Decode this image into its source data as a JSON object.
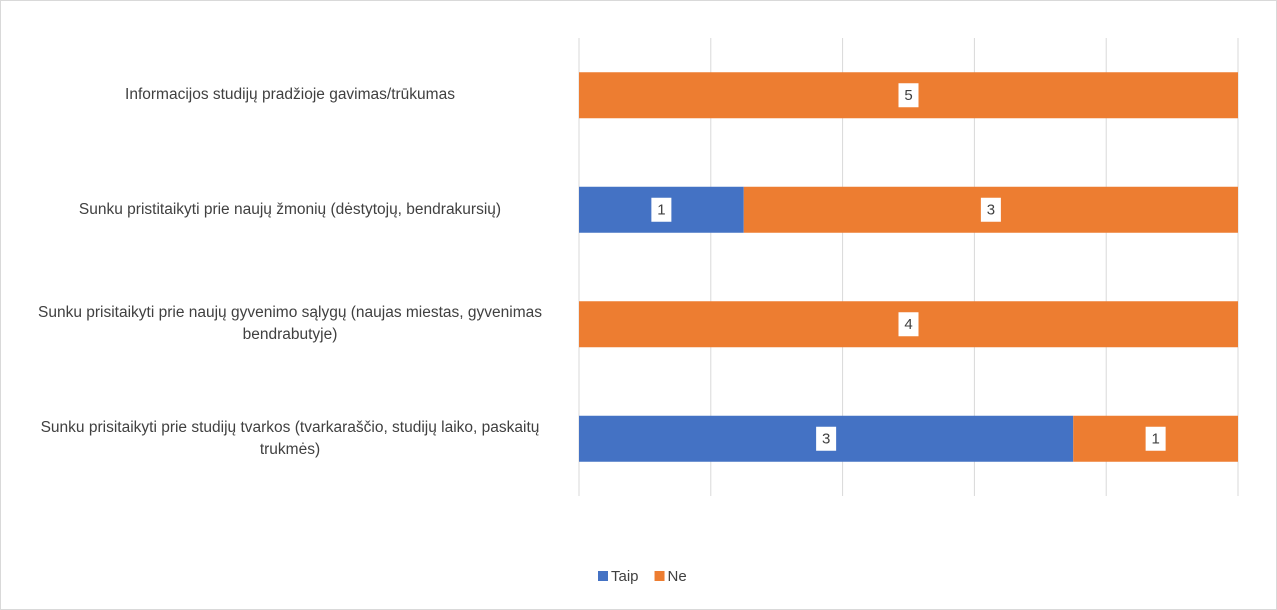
{
  "chart_data": {
    "type": "bar",
    "orientation": "horizontal",
    "stacking": "percent",
    "categories": [
      "Informacijos studijų pradžioje gavimas/trūkumas",
      "Sunku pristitaikyti prie naujų žmonių (dėstytojų, bendrakursių)",
      "Sunku prisitaikyti prie naujų gyvenimo sąlygų (naujas miestas, gyvenimas bendrabutyje)",
      "Sunku prisitaikyti prie studijų tvarkos (tvarkaraščio, studijų laiko, paskaitų trukmės)"
    ],
    "series": [
      {
        "name": "Taip",
        "color": "#4472c4",
        "values": [
          0,
          1,
          0,
          3
        ]
      },
      {
        "name": "Ne",
        "color": "#ed7d31",
        "values": [
          5,
          3,
          4,
          1
        ]
      }
    ],
    "xlim": [
      0,
      100
    ],
    "xticks": [
      0,
      20,
      40,
      60,
      80,
      100
    ],
    "grid": true,
    "legend": "bottom"
  }
}
